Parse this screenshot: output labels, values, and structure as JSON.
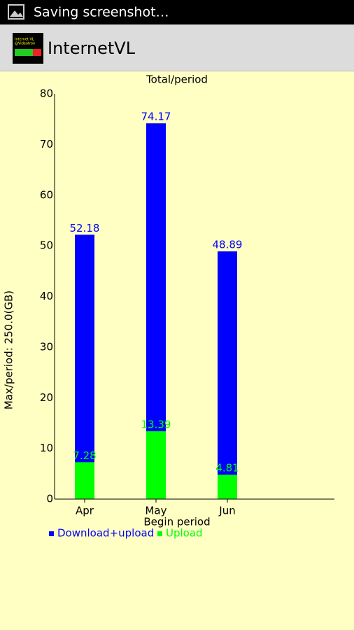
{
  "status_bar": {
    "text": "Saving screenshot…"
  },
  "app_bar": {
    "title": "InternetVL",
    "icon_text": [
      "Internet VL",
      "@Videotron"
    ]
  },
  "chart_data": {
    "type": "bar",
    "title": "Total/period",
    "x_label": "Begin period",
    "y_label": "Max/period: 250.0(GB)",
    "categories": [
      "Apr",
      "May",
      "Jun"
    ],
    "series": [
      {
        "name": "Download+upload",
        "color": "#0000ff",
        "values": [
          52.18,
          74.17,
          48.89
        ]
      },
      {
        "name": "Upload",
        "color": "#00ff00",
        "values": [
          7.28,
          13.39,
          4.81
        ]
      }
    ],
    "ylim": [
      0,
      80
    ],
    "yticks": [
      0,
      10,
      20,
      30,
      40,
      50,
      60,
      70,
      80
    ],
    "grid": false
  }
}
